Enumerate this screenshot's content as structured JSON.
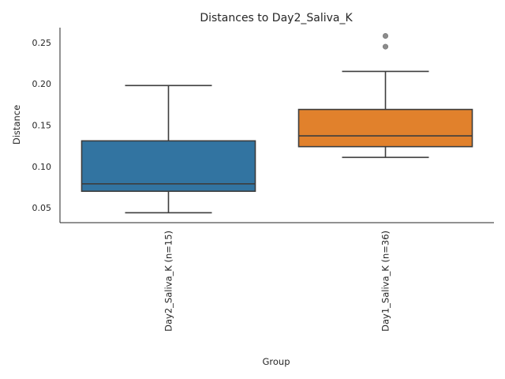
{
  "chart_data": {
    "type": "boxplot",
    "title": "Distances to Day2_Saliva_K",
    "xlabel": "Group",
    "ylabel": "Distance",
    "ylim": [
      0.032,
      0.268
    ],
    "yticks": [
      0.05,
      0.1,
      0.15,
      0.2,
      0.25
    ],
    "ytick_labels": [
      "0.05",
      "0.10",
      "0.15",
      "0.20",
      "0.25"
    ],
    "grid": false,
    "categories": [
      "Day2_Saliva_K (n=15)",
      "Day1_Saliva_K (n=36)"
    ],
    "boxes": [
      {
        "label": "Day2_Saliva_K (n=15)",
        "color": "#3274a1",
        "whisker_low": 0.044,
        "q1": 0.07,
        "median": 0.079,
        "q3": 0.131,
        "whisker_high": 0.198,
        "outliers": []
      },
      {
        "label": "Day1_Saliva_K (n=36)",
        "color": "#e1812c",
        "whisker_low": 0.111,
        "q1": 0.124,
        "median": 0.137,
        "q3": 0.169,
        "whisker_high": 0.215,
        "outliers": [
          0.245,
          0.258
        ]
      }
    ]
  }
}
